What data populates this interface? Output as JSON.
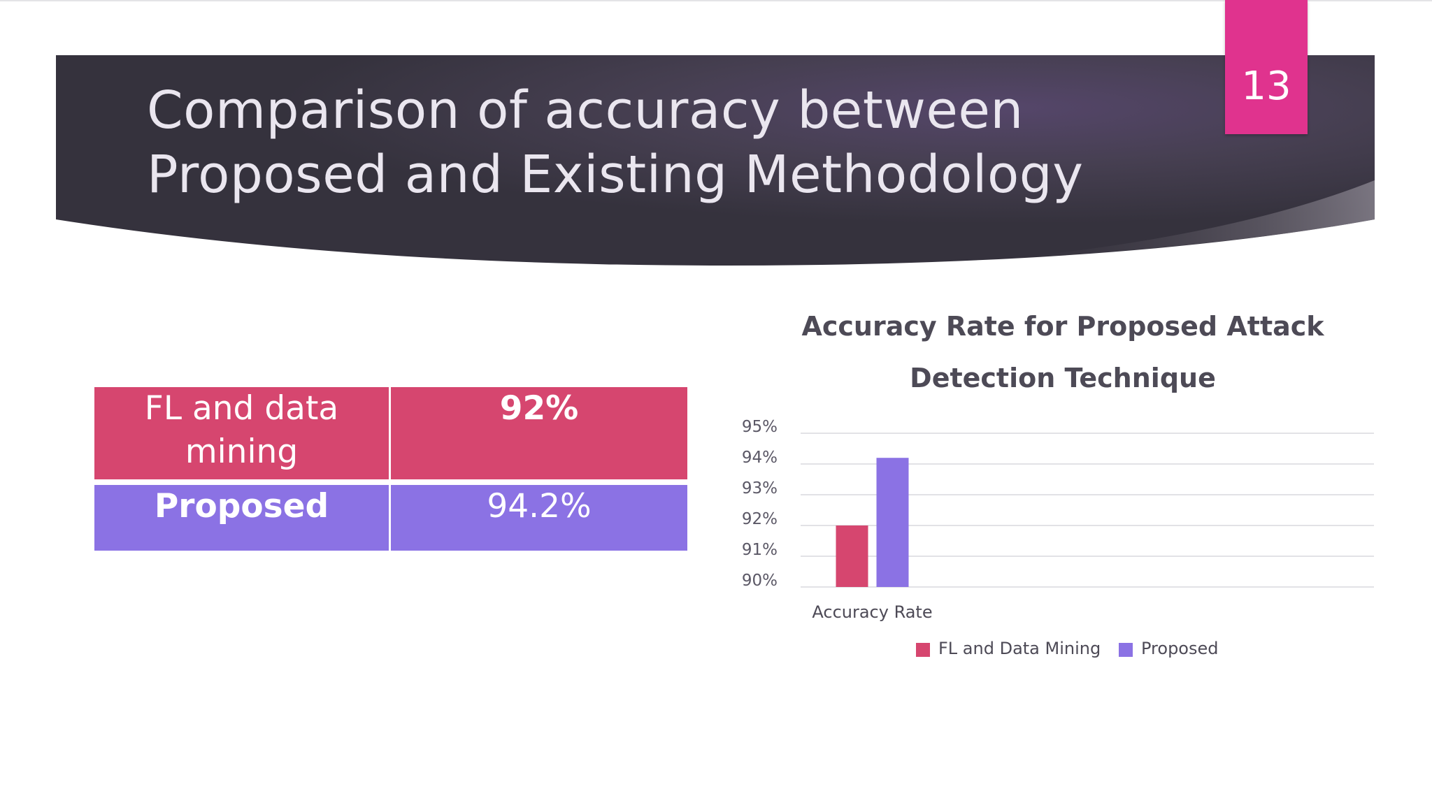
{
  "slide": {
    "title_line1": "Comparison of accuracy between",
    "title_line2": "Proposed and Existing Methodology",
    "page_number": "13",
    "colors": {
      "banner_dark": "#35323d",
      "banner_mid": "#5a4a64",
      "badge": "#e0338e",
      "row_existing": "#d6466f",
      "row_proposed": "#8b72e4"
    }
  },
  "table": {
    "rows": [
      {
        "method_line1": "FL and data",
        "method_line2": "mining",
        "value": "92%"
      },
      {
        "method": "Proposed",
        "value": "94.2%"
      }
    ]
  },
  "chart_data": {
    "type": "bar",
    "title_line1": "Accuracy Rate for Proposed Attack",
    "title_line2": "Detection Technique",
    "categories": [
      "Accuracy Rate"
    ],
    "series": [
      {
        "name": "FL and Data Mining",
        "values": [
          92
        ],
        "color": "#d6466f"
      },
      {
        "name": "Proposed",
        "values": [
          94.2
        ],
        "color": "#8b72e4"
      }
    ],
    "ylim": [
      90,
      95
    ],
    "yticks": [
      "90%",
      "91%",
      "92%",
      "93%",
      "94%",
      "95%"
    ],
    "grid": true,
    "legend": "bottom"
  }
}
